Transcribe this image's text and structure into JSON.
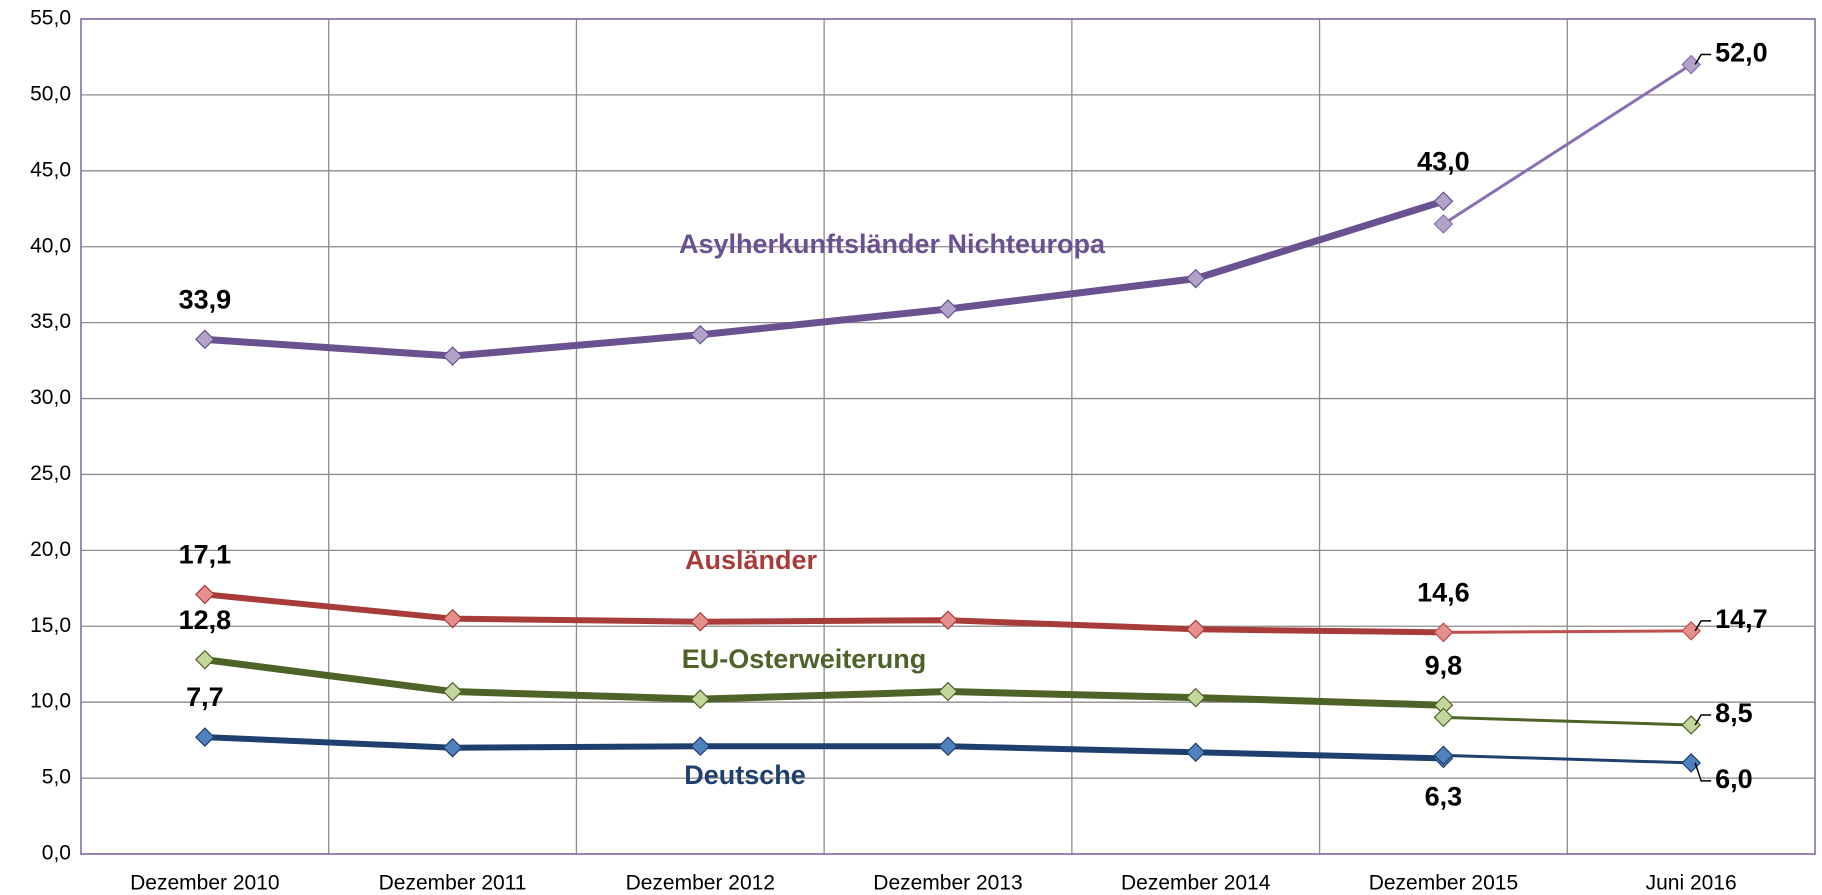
{
  "chart_data": {
    "type": "line",
    "categories": [
      "Dezember 2010",
      "Dezember 2011",
      "Dezember 2012",
      "Dezember 2013",
      "Dezember 2014",
      "Dezember 2015",
      "Juni 2016"
    ],
    "ylim": [
      0,
      55
    ],
    "yticks": [
      {
        "value": 0,
        "label": "0,0"
      },
      {
        "value": 5,
        "label": "5,0"
      },
      {
        "value": 10,
        "label": "10,0"
      },
      {
        "value": 15,
        "label": "15,0"
      },
      {
        "value": 20,
        "label": "20,0"
      },
      {
        "value": 25,
        "label": "25,0"
      },
      {
        "value": 30,
        "label": "30,0"
      },
      {
        "value": 35,
        "label": "35,0"
      },
      {
        "value": 40,
        "label": "40,0"
      },
      {
        "value": 45,
        "label": "45,0"
      },
      {
        "value": 50,
        "label": "50,0"
      },
      {
        "value": 55,
        "label": "55,0"
      }
    ],
    "grid": true,
    "series": [
      {
        "name": "Asylherkunftsländer Nichteuropa",
        "color": "#6a5290",
        "marker_color": "#b3a2c7",
        "values": [
          33.9,
          32.8,
          34.2,
          35.9,
          37.9,
          43.0,
          null
        ],
        "value_labels": [
          "33,9",
          null,
          null,
          null,
          null,
          "43,0",
          null
        ]
      },
      {
        "color": "#8a6fb5",
        "marker_color": "#b3a2c7",
        "values": [
          null,
          null,
          null,
          null,
          null,
          41.5,
          52.0
        ],
        "value_labels": [
          null,
          null,
          null,
          null,
          null,
          null,
          "52,0"
        ]
      },
      {
        "name": "Ausländer",
        "color": "#a83c3a",
        "marker_color": "#e6908e",
        "values": [
          17.1,
          15.5,
          15.3,
          15.4,
          14.8,
          14.6,
          null
        ],
        "value_labels": [
          "17,1",
          null,
          null,
          null,
          null,
          "14,6",
          null
        ]
      },
      {
        "color": "#c0504d",
        "marker_color": "#e6908e",
        "values": [
          null,
          null,
          null,
          null,
          null,
          14.6,
          14.7
        ],
        "value_labels": [
          null,
          null,
          null,
          null,
          null,
          null,
          "14,7"
        ]
      },
      {
        "name": "EU-Osterweiterung",
        "color": "#4f6228",
        "marker_color": "#c3d69b",
        "values": [
          12.8,
          10.7,
          10.2,
          10.7,
          10.3,
          9.8,
          null
        ],
        "value_labels": [
          "12,8",
          null,
          null,
          null,
          null,
          "9,8",
          null
        ]
      },
      {
        "color": "#4f6228",
        "marker_color": "#c3d69b",
        "values": [
          null,
          null,
          null,
          null,
          null,
          9.0,
          8.5
        ],
        "value_labels": [
          null,
          null,
          null,
          null,
          null,
          null,
          "8,5"
        ]
      },
      {
        "name": "Deutsche",
        "color": "#1f3f6e",
        "marker_color": "#4f81bd",
        "values": [
          7.7,
          7.0,
          7.1,
          7.1,
          6.7,
          6.3,
          null
        ],
        "value_labels": [
          "7,7",
          null,
          null,
          null,
          null,
          "6,3",
          null
        ]
      },
      {
        "color": "#1f3f6e",
        "marker_color": "#4f81bd",
        "values": [
          null,
          null,
          null,
          null,
          null,
          6.5,
          6.0
        ],
        "value_labels": [
          null,
          null,
          null,
          null,
          null,
          null,
          "6,0"
        ]
      }
    ]
  }
}
